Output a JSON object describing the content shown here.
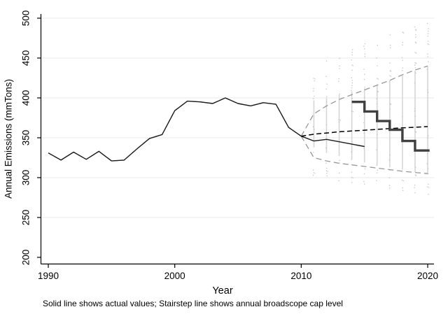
{
  "chart_data": {
    "type": "line",
    "title": "",
    "xlabel": "Year",
    "ylabel": "Annual Emissions (mmTons)",
    "note": "Solid line shows actual values; Stairstep line shows annual broadscope cap level",
    "x_ticks": [
      1990,
      2000,
      2010,
      2020
    ],
    "y_ticks": [
      200,
      250,
      300,
      350,
      400,
      450,
      500
    ],
    "xlim": [
      1989.4,
      2020.5
    ],
    "ylim": [
      195,
      505
    ],
    "grid": "horizontal-light",
    "colors": {
      "actual": "#1a1a1a",
      "historical_fit": "#9a9a9a",
      "forecast_central": "#000000",
      "forecast_bounds": "#979797",
      "cap": "#404040",
      "gridline": "#eaeaea",
      "sim_dense": "#d6d6d6",
      "sim_dots": "#c2c2c2"
    },
    "series": [
      {
        "name": "actual",
        "label": "Solid line shows actual values",
        "style": {
          "color": "#1a1a1a",
          "width": 1.4,
          "dash": "none"
        },
        "x": [
          1990,
          1991,
          1992,
          1993,
          1994,
          1995,
          1996,
          1997,
          1998,
          1999,
          2000,
          2001,
          2002,
          2003,
          2004,
          2005,
          2006,
          2007,
          2008,
          2009,
          2010,
          2011,
          2012,
          2013,
          2014,
          2015
        ],
        "y": [
          331,
          322,
          332,
          323,
          333,
          321,
          322,
          336,
          349,
          354,
          384,
          396,
          395,
          393,
          400,
          393,
          390,
          394,
          392,
          363,
          352,
          346,
          348,
          345,
          342,
          339
        ]
      },
      {
        "name": "historical_fit",
        "label": "in-sample model fit (overlaps actual)",
        "style": {
          "color": "#9a9a9a",
          "width": 1.3,
          "dash": "6 4"
        },
        "x": [
          1990,
          1991,
          1992,
          1993,
          1994,
          1995,
          1996,
          1997,
          1998,
          1999,
          2000,
          2001,
          2002,
          2003,
          2004,
          2005,
          2006,
          2007,
          2008,
          2009,
          2010
        ],
        "y": [
          331,
          322,
          332,
          323,
          333,
          321,
          322,
          336,
          349,
          354,
          384,
          396,
          395,
          393,
          400,
          393,
          390,
          394,
          392,
          363,
          352
        ]
      },
      {
        "name": "forecast_central",
        "label": "central forecast",
        "style": {
          "color": "#000000",
          "width": 1.5,
          "dash": "7 4"
        },
        "x": [
          2010,
          2011,
          2012,
          2013,
          2014,
          2015,
          2016,
          2017,
          2018,
          2019,
          2020
        ],
        "y": [
          352,
          354.5,
          356,
          357.5,
          358.5,
          359.5,
          360.5,
          361.5,
          362.5,
          363.2,
          364
        ]
      },
      {
        "name": "forecast_upper",
        "label": "upper forecast bound",
        "style": {
          "color": "#979797",
          "width": 1.3,
          "dash": "8 5"
        },
        "x": [
          2010,
          2011,
          2012,
          2013,
          2014,
          2015,
          2016,
          2017,
          2018,
          2019,
          2020
        ],
        "y": [
          352,
          380,
          390,
          398,
          404,
          410,
          416,
          422,
          429,
          435,
          440
        ]
      },
      {
        "name": "forecast_lower",
        "label": "lower forecast bound",
        "style": {
          "color": "#979797",
          "width": 1.3,
          "dash": "8 5"
        },
        "x": [
          2010,
          2011,
          2012,
          2013,
          2014,
          2015,
          2016,
          2017,
          2018,
          2019,
          2020
        ],
        "y": [
          352,
          325,
          321,
          318,
          316,
          314,
          312,
          310,
          308,
          306.5,
          305
        ]
      },
      {
        "name": "broadscope_cap",
        "label": "Stairstep line shows annual broadscope cap level",
        "style": {
          "color": "#404040",
          "width": 3.4,
          "dash": "none",
          "kind": "stairstep"
        },
        "steps": [
          [
            2014,
            395
          ],
          [
            2015,
            383
          ],
          [
            2016,
            371
          ],
          [
            2017,
            360
          ],
          [
            2018,
            346
          ],
          [
            2019,
            334
          ]
        ],
        "end_year": 2020.15
      }
    ],
    "simulation_columns": [
      {
        "year": 2011,
        "dense": [
          338,
          397
        ],
        "tail": [
          303,
          427
        ]
      },
      {
        "year": 2012,
        "dense": [
          331,
          400
        ],
        "tail": [
          299,
          447
        ]
      },
      {
        "year": 2013,
        "dense": [
          327,
          404
        ],
        "tail": [
          296,
          456
        ]
      },
      {
        "year": 2014,
        "dense": [
          323,
          408
        ],
        "tail": [
          294,
          462
        ]
      },
      {
        "year": 2015,
        "dense": [
          319,
          412
        ],
        "tail": [
          292,
          468
        ]
      },
      {
        "year": 2016,
        "dense": [
          316,
          417
        ],
        "tail": [
          290,
          473
        ]
      },
      {
        "year": 2017,
        "dense": [
          313,
          422
        ],
        "tail": [
          287,
          480
        ]
      },
      {
        "year": 2018,
        "dense": [
          310,
          428
        ],
        "tail": [
          284,
          487
        ]
      },
      {
        "year": 2019,
        "dense": [
          307,
          434
        ],
        "tail": [
          281,
          493
        ]
      },
      {
        "year": 2020,
        "dense": [
          305,
          440
        ],
        "tail": [
          279,
          496
        ]
      }
    ]
  }
}
